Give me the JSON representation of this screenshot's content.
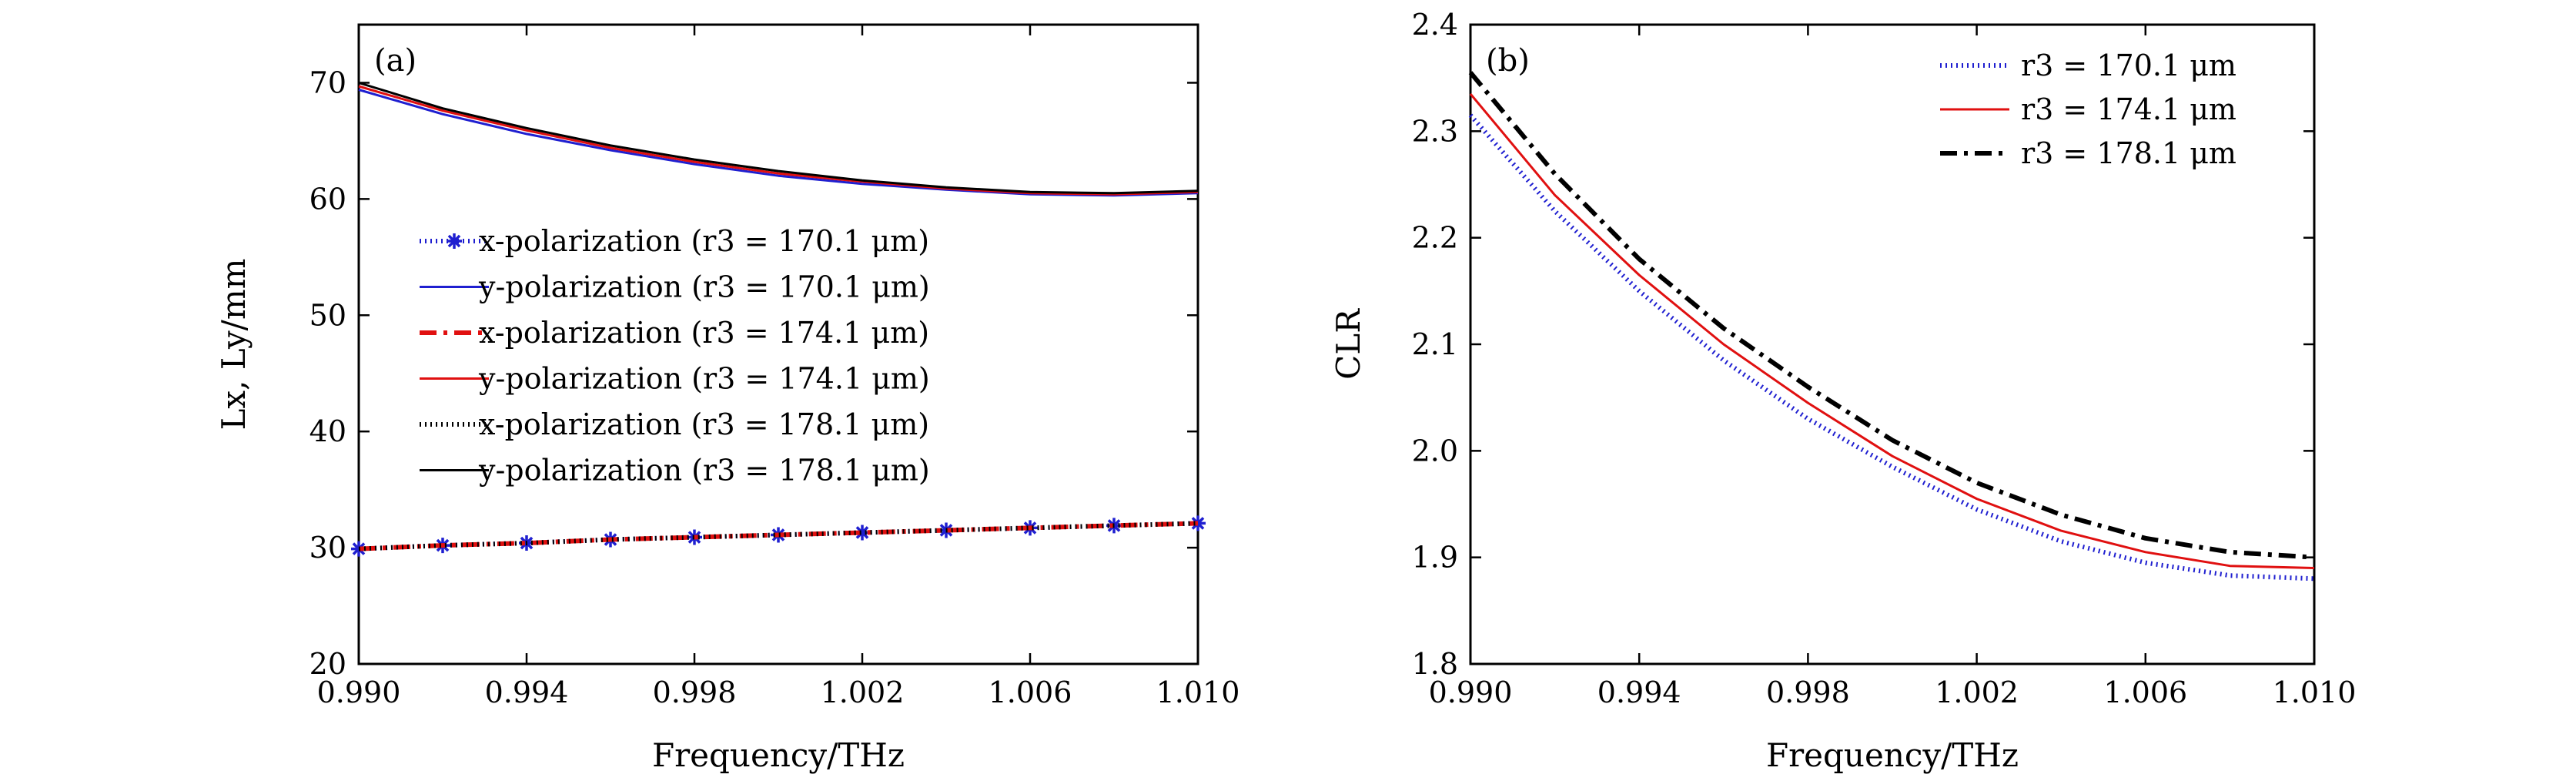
{
  "chart_data": [
    {
      "type": "line",
      "panel_label": "(a)",
      "xlabel": "Frequency/THz",
      "ylabel": "Lx, Ly/mm",
      "xlim": [
        0.99,
        1.01
      ],
      "ylim": [
        20,
        75
      ],
      "xticks": [
        "0.990",
        "0.994",
        "0.998",
        "1.002",
        "1.006",
        "1.010"
      ],
      "yticks": [
        "20",
        "30",
        "40",
        "50",
        "60",
        "70"
      ],
      "legend_position": "center-right",
      "x": [
        0.99,
        0.992,
        0.994,
        0.996,
        0.998,
        1.0,
        1.002,
        1.004,
        1.006,
        1.008,
        1.01
      ],
      "series": [
        {
          "name": "x-polarization (r3 = 170.1 μm)",
          "color": "#1f1fd0",
          "style": "dotted-star",
          "values": [
            29.9,
            30.2,
            30.4,
            30.7,
            30.9,
            31.1,
            31.3,
            31.5,
            31.7,
            31.9,
            32.1
          ]
        },
        {
          "name": "y-polarization (r3 = 170.1 μm)",
          "color": "#1f1fd0",
          "style": "solid",
          "values": [
            69.4,
            67.3,
            65.6,
            64.2,
            63.0,
            62.0,
            61.3,
            60.8,
            60.4,
            60.3,
            60.5
          ]
        },
        {
          "name": "x-polarization (r3 = 174.1 μm)",
          "color": "#e01010",
          "style": "dashdot",
          "values": [
            29.9,
            30.2,
            30.4,
            30.7,
            30.9,
            31.1,
            31.3,
            31.5,
            31.7,
            31.9,
            32.1
          ]
        },
        {
          "name": "y-polarization (r3 = 174.1 μm)",
          "color": "#e01010",
          "style": "solid",
          "values": [
            69.7,
            67.6,
            65.9,
            64.4,
            63.2,
            62.2,
            61.5,
            60.9,
            60.5,
            60.4,
            60.6
          ]
        },
        {
          "name": "x-polarization (r3 = 178.1 μm)",
          "color": "#000000",
          "style": "dotted",
          "values": [
            29.9,
            30.2,
            30.4,
            30.7,
            30.9,
            31.1,
            31.3,
            31.5,
            31.7,
            31.9,
            32.1
          ]
        },
        {
          "name": "y-polarization (r3 = 178.1 μm)",
          "color": "#000000",
          "style": "solid",
          "values": [
            70.0,
            67.8,
            66.1,
            64.6,
            63.4,
            62.4,
            61.6,
            61.0,
            60.6,
            60.5,
            60.7
          ]
        }
      ]
    },
    {
      "type": "line",
      "panel_label": "(b)",
      "xlabel": "Frequency/THz",
      "ylabel": "CLR",
      "xlim": [
        0.99,
        1.01
      ],
      "ylim": [
        1.8,
        2.4
      ],
      "xticks": [
        "0.990",
        "0.994",
        "0.998",
        "1.002",
        "1.006",
        "1.010"
      ],
      "yticks": [
        "1.8",
        "1.9",
        "2.0",
        "2.1",
        "2.2",
        "2.3",
        "2.4"
      ],
      "legend_position": "top-right",
      "x": [
        0.99,
        0.992,
        0.994,
        0.996,
        0.998,
        1.0,
        1.002,
        1.004,
        1.006,
        1.008,
        1.01
      ],
      "series": [
        {
          "name": "r3 = 170.1 μm",
          "color": "#1f1fd0",
          "style": "dotted",
          "values": [
            2.315,
            2.225,
            2.15,
            2.085,
            2.03,
            1.985,
            1.945,
            1.915,
            1.895,
            1.883,
            1.88
          ]
        },
        {
          "name": "r3 = 174.1 μm",
          "color": "#e01010",
          "style": "solid",
          "values": [
            2.335,
            2.24,
            2.165,
            2.1,
            2.045,
            1.995,
            1.955,
            1.925,
            1.905,
            1.892,
            1.89
          ]
        },
        {
          "name": "r3 = 178.1 μm",
          "color": "#000000",
          "style": "dashdot",
          "values": [
            2.355,
            2.26,
            2.18,
            2.115,
            2.06,
            2.01,
            1.97,
            1.94,
            1.918,
            1.905,
            1.9
          ]
        }
      ]
    }
  ]
}
